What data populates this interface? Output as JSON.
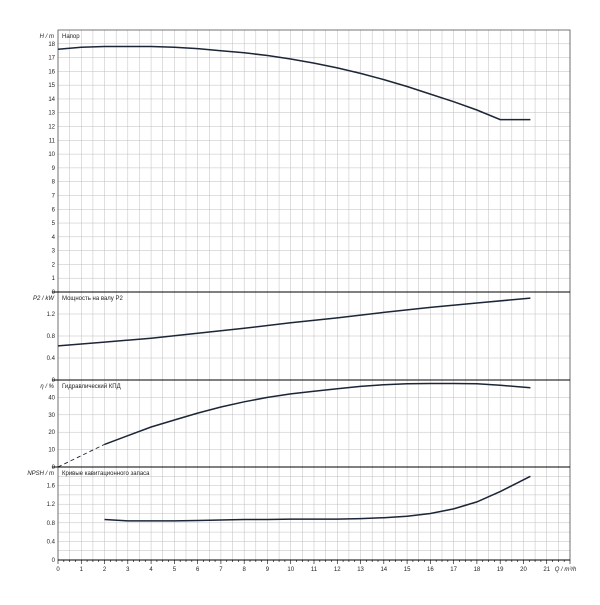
{
  "chart_data": [
    {
      "type": "line",
      "id": "head",
      "ylabel": "H / m",
      "title": "Напор",
      "xlim": [
        0,
        22
      ],
      "ylim": [
        0,
        19
      ],
      "yticks": [
        0,
        1,
        2,
        3,
        4,
        5,
        6,
        7,
        8,
        9,
        10,
        11,
        12,
        13,
        14,
        15,
        16,
        17,
        18
      ],
      "series": [
        {
          "x": [
            0,
            1,
            2,
            3,
            4,
            5,
            6,
            7,
            8,
            9,
            10,
            11,
            12,
            13,
            14,
            15,
            16,
            17,
            18,
            19,
            20.3
          ],
          "y": [
            17.6,
            17.75,
            17.8,
            17.8,
            17.8,
            17.75,
            17.65,
            17.5,
            17.35,
            17.15,
            16.9,
            16.6,
            16.25,
            15.85,
            15.4,
            14.9,
            14.35,
            13.8,
            13.2,
            12.5,
            12.5
          ],
          "dashed": false
        }
      ]
    },
    {
      "type": "line",
      "id": "power",
      "ylabel": "P2 / kW",
      "title": "Мощность на валу P2",
      "xlim": [
        0,
        22
      ],
      "ylim": [
        0,
        1.6
      ],
      "yticks": [
        0,
        0.4,
        0.8,
        1.2
      ],
      "series": [
        {
          "x": [
            0,
            2,
            4,
            6,
            8,
            10,
            12,
            14,
            16,
            18,
            20.3
          ],
          "y": [
            0.62,
            0.69,
            0.76,
            0.85,
            0.94,
            1.04,
            1.13,
            1.23,
            1.32,
            1.4,
            1.49
          ],
          "dashed": false
        }
      ]
    },
    {
      "type": "line",
      "id": "efficiency",
      "ylabel": "η / %",
      "title": "Гидравлический КПД",
      "xlim": [
        0,
        22
      ],
      "ylim": [
        0,
        50
      ],
      "yticks": [
        0,
        10,
        20,
        30,
        40
      ],
      "series": [
        {
          "x": [
            0,
            2
          ],
          "y": [
            0,
            13
          ],
          "dashed": true
        },
        {
          "x": [
            2,
            3,
            4,
            5,
            6,
            7,
            8,
            9,
            10,
            11,
            12,
            13,
            14,
            15,
            16,
            17,
            18,
            19,
            20.3
          ],
          "y": [
            13,
            18,
            23,
            27,
            31,
            34.5,
            37.5,
            40,
            42,
            43.5,
            45,
            46.3,
            47.3,
            47.8,
            48,
            48,
            47.8,
            47,
            45.5
          ],
          "dashed": false
        }
      ]
    },
    {
      "type": "line",
      "id": "npsh",
      "ylabel": "NPSH / m",
      "title": "Кривые кавитационного запаса",
      "xlim": [
        0,
        22
      ],
      "ylim": [
        0,
        2
      ],
      "yticks": [
        0,
        0.2,
        0.4,
        0.6,
        0.8,
        1,
        1.2,
        1.4,
        1.6,
        1.8
      ],
      "ytick_labels": [
        "0",
        "0.4",
        "0.8",
        "1.2",
        "1.6"
      ],
      "series": [
        {
          "x": [
            2,
            3,
            4,
            5,
            6,
            7,
            8,
            9,
            10,
            11,
            12,
            13,
            14,
            15,
            16,
            17,
            18,
            19,
            20.3
          ],
          "y": [
            0.87,
            0.84,
            0.84,
            0.84,
            0.85,
            0.86,
            0.87,
            0.87,
            0.88,
            0.88,
            0.88,
            0.89,
            0.91,
            0.94,
            1.0,
            1.1,
            1.25,
            1.47,
            1.8
          ],
          "dashed": false
        }
      ]
    }
  ],
  "x_axis": {
    "label": "Q / m³/h",
    "ticks": [
      0,
      1,
      2,
      3,
      4,
      5,
      6,
      7,
      8,
      9,
      10,
      11,
      12,
      13,
      14,
      15,
      16,
      17,
      18,
      19,
      20,
      21
    ]
  },
  "colors": {
    "curve": "#1b2636",
    "grid": "#bfbfbf",
    "axis": "#000000"
  },
  "grid": true
}
